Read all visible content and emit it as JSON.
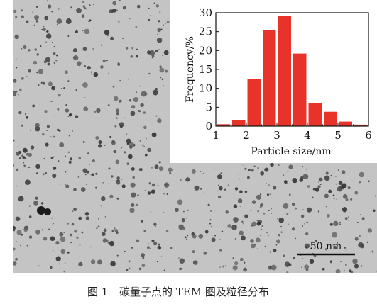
{
  "chart_data": {
    "type": "bar",
    "panel": "inset",
    "title": "",
    "xlabel": "Particle size/nm",
    "ylabel": "Frequency/%",
    "xlim": [
      1,
      6
    ],
    "ylim": [
      0,
      30
    ],
    "xticks": [
      1,
      2,
      3,
      4,
      5,
      6
    ],
    "yticks": [
      0,
      5,
      10,
      15,
      20,
      25,
      30
    ],
    "bin_width": 0.5,
    "bins": [
      {
        "x": 1.25,
        "value": 0.5
      },
      {
        "x": 1.75,
        "value": 1.5
      },
      {
        "x": 2.25,
        "value": 12.5
      },
      {
        "x": 2.75,
        "value": 25.5
      },
      {
        "x": 3.25,
        "value": 29.2
      },
      {
        "x": 3.75,
        "value": 19.2
      },
      {
        "x": 4.25,
        "value": 6.0
      },
      {
        "x": 4.75,
        "value": 3.8
      },
      {
        "x": 5.25,
        "value": 1.2
      },
      {
        "x": 5.75,
        "value": 0.4
      }
    ],
    "bar_color": "#e8332a",
    "grid": false,
    "legend": "none"
  },
  "tem_image": {
    "scale_bar_label": "50 nm"
  },
  "caption": {
    "figure_number": "图 1",
    "text": "碳量子点的 TEM 图及粒径分布"
  }
}
